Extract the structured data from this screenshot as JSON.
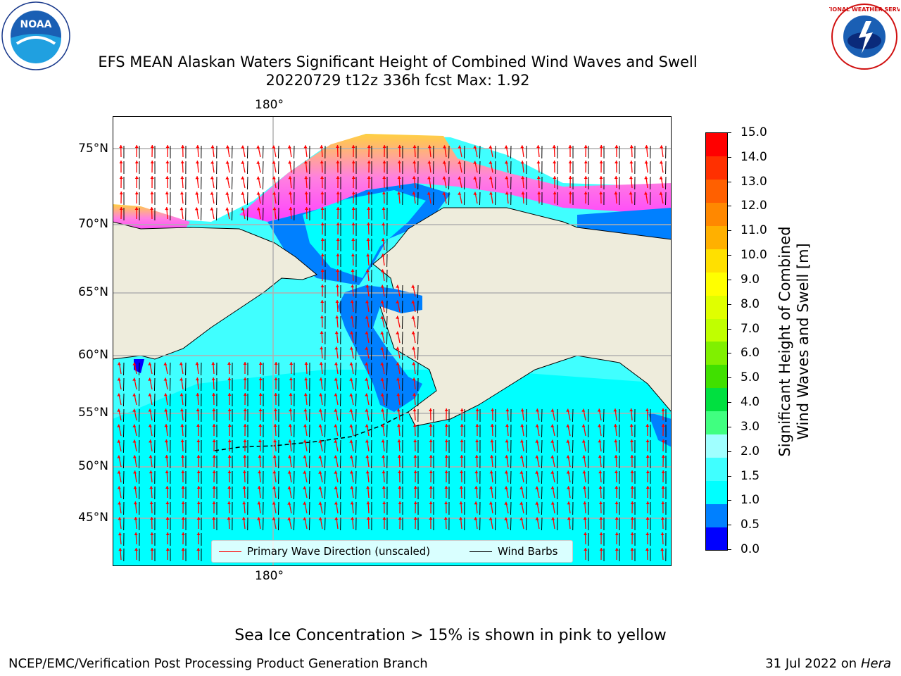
{
  "title_line1": "EFS MEAN Alaskan Waters Significant Height of Combined Wind Waves and Swell",
  "title_line2": "20220729 t12z 336h fcst   Max: 1.92",
  "logos": {
    "left": "NOAA",
    "right": "NATIONAL WEATHER SERVICE"
  },
  "map": {
    "lon_label_top": "180°",
    "lon_label_bottom": "180°",
    "lat_labels": [
      "75°N",
      "70°N",
      "65°N",
      "60°N",
      "55°N",
      "50°N",
      "45°N"
    ],
    "land_color": "#eeecdc",
    "ocean_color": "#00ffff",
    "grid_color": "#b0b0b0"
  },
  "legend": {
    "wave_label": "Primary Wave Direction (unscaled)",
    "wave_color": "#ff0000",
    "barb_label": "Wind Barbs",
    "barb_color": "#000000"
  },
  "colorbar": {
    "label_line1": "Significant Height of Combined",
    "label_line2": "Wind Waves and Swell [m]",
    "ticks": [
      "15.0",
      "14.0",
      "13.0",
      "12.0",
      "11.0",
      "10.0",
      "9.0",
      "8.0",
      "7.0",
      "6.0",
      "5.0",
      "4.0",
      "3.0",
      "2.0",
      "1.5",
      "1.0",
      "0.5",
      "0.0"
    ],
    "colors": [
      "#0000ff",
      "#0080ff",
      "#00ffff",
      "#40ffff",
      "#a0ffff",
      "#40ff80",
      "#00e040",
      "#40e000",
      "#80f000",
      "#c0ff00",
      "#e0ff00",
      "#ffff00",
      "#ffe000",
      "#ffb000",
      "#ff8800",
      "#ff6000",
      "#ff3000",
      "#ff0000"
    ]
  },
  "sea_ice_note": "Sea Ice Concentration > 15% is shown in pink to yellow",
  "footer_left": "NCEP/EMC/Verification Post Processing Product Generation Branch",
  "footer_right_date": "31 Jul 2022 on ",
  "footer_right_host": "Hera"
}
